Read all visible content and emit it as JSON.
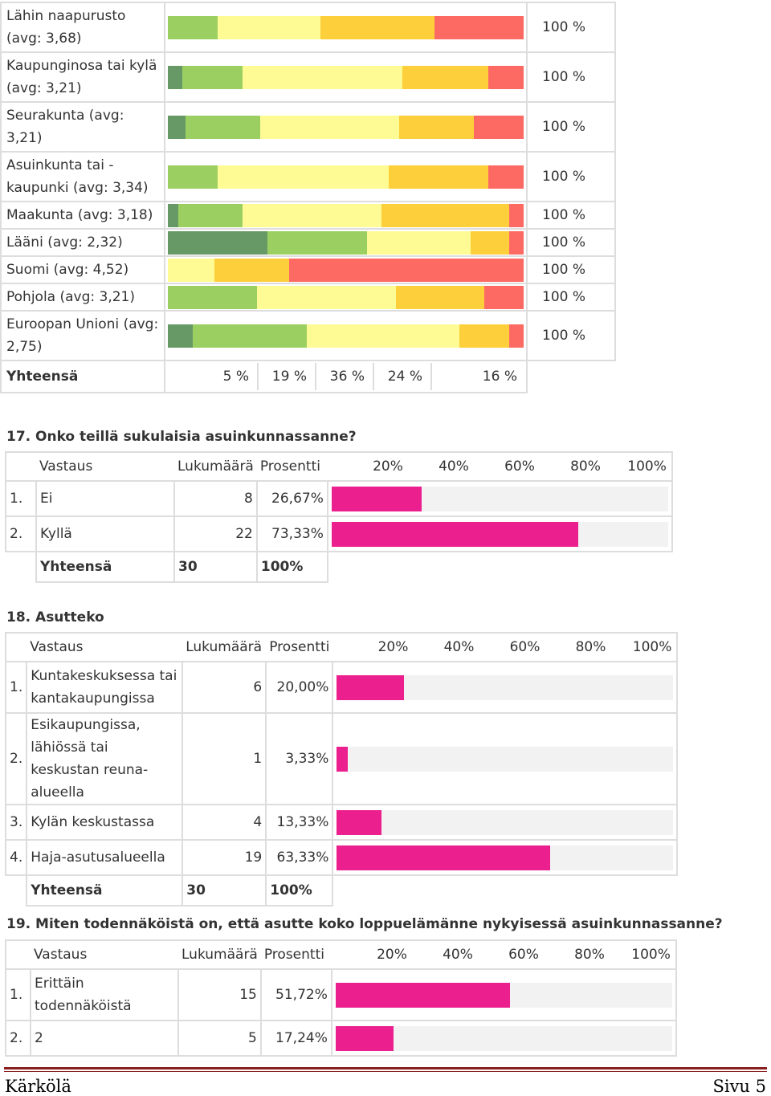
{
  "colors": {
    "c1": "#679966",
    "c2": "#9ccf62",
    "c3": "#fefb95",
    "c4": "#fdcf3b",
    "c5": "#fd6a63",
    "bar": "#ec1f8f"
  },
  "stack": {
    "rows": [
      {
        "label": "Lähin naapurusto (avg: 3,68)",
        "segments": [
          0,
          14,
          29,
          32,
          25
        ],
        "total": "100 %"
      },
      {
        "label": "Kaupunginosa tai kylä (avg: 3,21)",
        "segments": [
          4,
          17,
          45,
          24,
          10
        ],
        "total": "100 %"
      },
      {
        "label": "Seurakunta (avg: 3,21)",
        "segments": [
          5,
          21,
          39,
          21,
          14
        ],
        "total": "100 %"
      },
      {
        "label": "Asuinkunta tai -kaupunki (avg: 3,34)",
        "segments": [
          0,
          14,
          48,
          28,
          10
        ],
        "total": "100 %"
      },
      {
        "label": "Maakunta (avg: 3,18)",
        "segments": [
          3,
          18,
          39,
          36,
          4
        ],
        "total": "100 %"
      },
      {
        "label": "Lääni (avg: 2,32)",
        "segments": [
          28,
          28,
          29,
          11,
          4
        ],
        "total": "100 %"
      },
      {
        "label": "Suomi (avg: 4,52)",
        "segments": [
          0,
          0,
          13,
          21,
          66
        ],
        "total": "100 %"
      },
      {
        "label": "Pohjola (avg: 3,21)",
        "segments": [
          0,
          25,
          39,
          25,
          11
        ],
        "total": "100 %"
      },
      {
        "label": "Euroopan Unionin (avg: 2,75)",
        "segments": [
          7,
          32,
          43,
          14,
          4
        ],
        "total": "100 %"
      }
    ],
    "sum_label": "Yhteensä",
    "sum_values": [
      "5 %",
      "19 %",
      "36 %",
      "24 %",
      "16 %"
    ]
  },
  "q17": {
    "title": "17. Onko teillä sukulaisia asuinkunnassanne?",
    "headers": {
      "answer": "Vastaus",
      "count": "Lukumäärä",
      "percent": "Prosentti"
    },
    "scale": [
      "20%",
      "40%",
      "60%",
      "80%",
      "100%"
    ],
    "rows": [
      {
        "no": "1.",
        "label": "Ei",
        "count": "8",
        "pct": "26,67%",
        "value": 26.67
      },
      {
        "no": "2.",
        "label": "Kyllä",
        "count": "22",
        "pct": "73,33%",
        "value": 73.33
      }
    ],
    "sum": {
      "label": "Yhteensä",
      "count": "30",
      "pct": "100%"
    }
  },
  "q18": {
    "title": "18. Asutteko",
    "headers": {
      "answer": "Vastaus",
      "count": "Lukumäärä",
      "percent": "Prosentti"
    },
    "scale": [
      "20%",
      "40%",
      "60%",
      "80%",
      "100%"
    ],
    "rows": [
      {
        "no": "1.",
        "label": "Kuntakeskuksessa tai kantakaupungissa",
        "count": "6",
        "pct": "20,00%",
        "value": 20
      },
      {
        "no": "2.",
        "label": "Esikaupungissa, lähiössä tai keskustan reuna-alueella",
        "count": "1",
        "pct": "3,33%",
        "value": 3.33
      },
      {
        "no": "3.",
        "label": "Kylän keskustassa",
        "count": "4",
        "pct": "13,33%",
        "value": 13.33
      },
      {
        "no": "4.",
        "label": "Haja-asutusalueella",
        "count": "19",
        "pct": "63,33%",
        "value": 63.33
      }
    ],
    "sum": {
      "label": "Yhteensä",
      "count": "30",
      "pct": "100%"
    }
  },
  "q19": {
    "title": "19. Miten todennäköistä on, että asutte koko loppuelämänne nykyisessä asuinkunnassanne?",
    "headers": {
      "answer": "Vastaus",
      "count": "Lukumäärä",
      "percent": "Prosentti"
    },
    "scale": [
      "20%",
      "40%",
      "60%",
      "80%",
      "100%"
    ],
    "rows": [
      {
        "no": "1.",
        "label": "Erittäin todennäköistä",
        "count": "15",
        "pct": "51,72%",
        "value": 51.72
      },
      {
        "no": "2.",
        "label": "2",
        "count": "5",
        "pct": "17,24%",
        "value": 17.24
      }
    ]
  },
  "footer": {
    "left": "Kärkölä",
    "right": "Sivu 5"
  }
}
